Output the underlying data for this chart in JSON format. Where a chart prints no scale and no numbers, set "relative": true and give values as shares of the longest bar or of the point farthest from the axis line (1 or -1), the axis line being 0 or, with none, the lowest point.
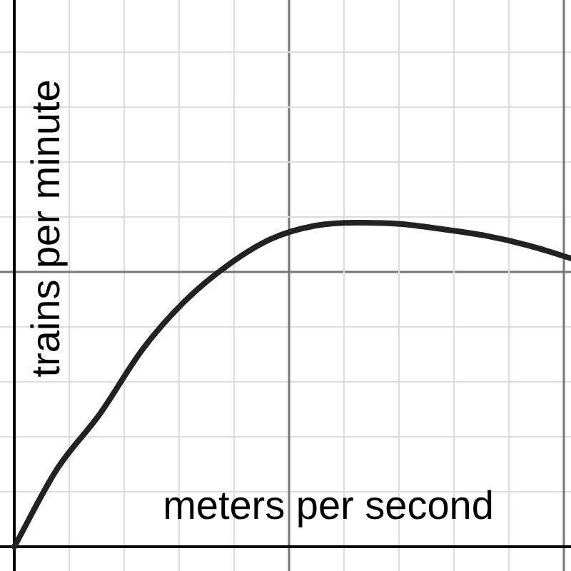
{
  "chart_data": {
    "type": "line",
    "relative": true,
    "xlabel": "meters per second",
    "ylabel": "trains per minute",
    "grid": true,
    "legend": false,
    "marker": "none",
    "line_style": "solid",
    "categories": [
      null,
      null,
      null,
      null,
      null,
      null,
      null,
      null,
      null,
      null,
      null,
      null,
      null,
      null
    ],
    "series": [
      {
        "color": "#222222",
        "values": [
          0,
          0.24,
          0.41,
          0.61,
          0.76,
          0.87,
          0.95,
          0.99,
          1,
          0.996,
          0.98,
          0.96,
          0.93,
          0.89
        ]
      }
    ]
  }
}
